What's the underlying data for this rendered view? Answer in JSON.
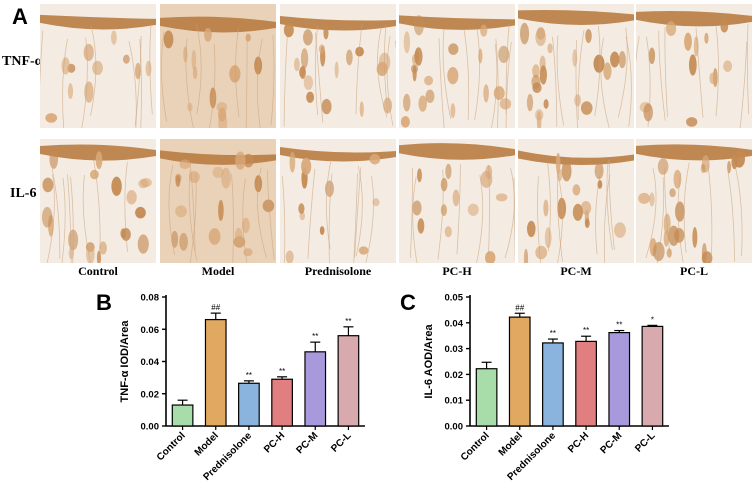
{
  "panelA": {
    "letter": "A",
    "row_labels": [
      "TNF-α",
      "IL-6"
    ],
    "column_labels": [
      "Control",
      "Model",
      "Prednisolone",
      "PC-H",
      "PC-M",
      "PC-L"
    ]
  },
  "panelB": {
    "letter": "B"
  },
  "panelC": {
    "letter": "C"
  },
  "chart_data": [
    {
      "type": "bar",
      "categories": [
        "Control",
        "Model",
        "Prednisolone",
        "PC-H",
        "PC-M",
        "PC-L"
      ],
      "values": [
        0.013,
        0.066,
        0.0265,
        0.029,
        0.046,
        0.056
      ],
      "errors": [
        0.003,
        0.004,
        0.0015,
        0.0015,
        0.006,
        0.0055
      ],
      "annotations": [
        "",
        "##",
        "**",
        "**",
        "**",
        "**"
      ],
      "colors": [
        "#a8dca8",
        "#e0a860",
        "#8ab4de",
        "#e07e80",
        "#a898dc",
        "#d8aaae"
      ],
      "ylabel": "TNF-α IOD/Area",
      "ylim": [
        0,
        0.08
      ],
      "yticks": [
        "0.00",
        "0.02",
        "0.04",
        "0.06",
        "0.08"
      ]
    },
    {
      "type": "bar",
      "categories": [
        "Control",
        "Model",
        "Prednisolone",
        "PC-H",
        "PC-M",
        "PC-L"
      ],
      "values": [
        0.0222,
        0.0422,
        0.0322,
        0.0328,
        0.0362,
        0.0386
      ],
      "errors": [
        0.0025,
        0.0015,
        0.0015,
        0.002,
        0.0008,
        0.0004
      ],
      "annotations": [
        "",
        "##",
        "**",
        "**",
        "**",
        "*"
      ],
      "colors": [
        "#a8dca8",
        "#e0a860",
        "#8ab4de",
        "#e07e80",
        "#a898dc",
        "#d8aaae"
      ],
      "ylabel": "IL-6 AOD/Area",
      "ylim": [
        0,
        0.05
      ],
      "yticks": [
        "0.00",
        "0.01",
        "0.02",
        "0.03",
        "0.04",
        "0.05"
      ]
    }
  ]
}
